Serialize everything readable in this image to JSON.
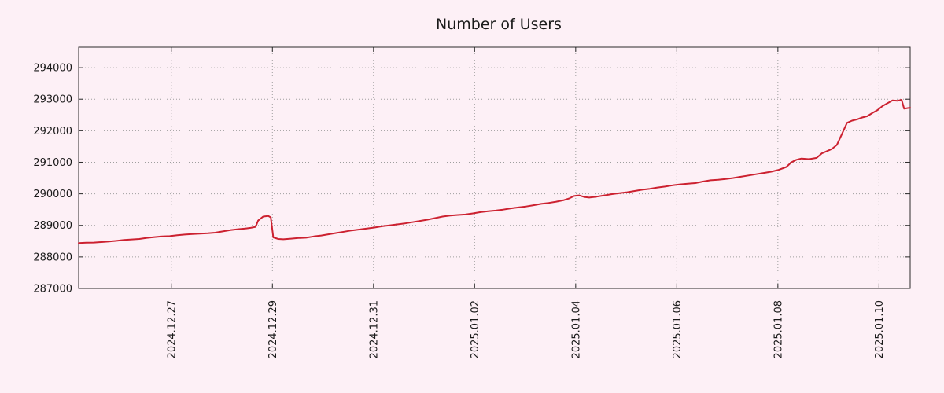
{
  "title": "Number of Users",
  "chart_data": {
    "type": "line",
    "title": "Number of Users",
    "xlabel": "",
    "ylabel": "",
    "legend": "none",
    "grid": "dotted",
    "colors": {
      "background": "#fdf0f6",
      "line": "#cc2130",
      "grid": "#9e9e9e",
      "frame": "#2a2a2a",
      "text": "#1a1a1a"
    },
    "x_axis": {
      "unit": "days-from-left-edge",
      "range_days": [
        0,
        16.45
      ],
      "ticks": [
        {
          "t": 1.833,
          "label": "2024.12.27"
        },
        {
          "t": 3.833,
          "label": "2024.12.29"
        },
        {
          "t": 5.833,
          "label": "2024.12.31"
        },
        {
          "t": 7.833,
          "label": "2025.01.02"
        },
        {
          "t": 9.833,
          "label": "2025.01.04"
        },
        {
          "t": 11.833,
          "label": "2025.01.06"
        },
        {
          "t": 13.833,
          "label": "2025.01.08"
        },
        {
          "t": 15.833,
          "label": "2025.01.10"
        }
      ]
    },
    "y_axis": {
      "range": [
        287000,
        294650
      ],
      "ticks": [
        287000,
        288000,
        289000,
        290000,
        291000,
        292000,
        293000,
        294000
      ]
    },
    "series": [
      {
        "name": "Number of Users",
        "color": "#cc2130",
        "points": [
          [
            0,
            288440
          ],
          [
            0.15,
            288450
          ],
          [
            0.3,
            288455
          ],
          [
            0.45,
            288470
          ],
          [
            0.6,
            288490
          ],
          [
            0.75,
            288510
          ],
          [
            0.9,
            288540
          ],
          [
            1.05,
            288555
          ],
          [
            1.2,
            288570
          ],
          [
            1.35,
            288605
          ],
          [
            1.5,
            288630
          ],
          [
            1.65,
            288650
          ],
          [
            1.8,
            288660
          ],
          [
            1.95,
            288690
          ],
          [
            2.1,
            288710
          ],
          [
            2.25,
            288725
          ],
          [
            2.4,
            288740
          ],
          [
            2.55,
            288750
          ],
          [
            2.7,
            288770
          ],
          [
            2.85,
            288810
          ],
          [
            3,
            288850
          ],
          [
            3.15,
            288880
          ],
          [
            3.3,
            288900
          ],
          [
            3.4,
            288920
          ],
          [
            3.5,
            288950
          ],
          [
            3.55,
            289150
          ],
          [
            3.65,
            289280
          ],
          [
            3.75,
            289300
          ],
          [
            3.8,
            289255
          ],
          [
            3.85,
            288620
          ],
          [
            3.95,
            288570
          ],
          [
            4.05,
            288560
          ],
          [
            4.2,
            288580
          ],
          [
            4.35,
            288600
          ],
          [
            4.5,
            288610
          ],
          [
            4.65,
            288650
          ],
          [
            4.8,
            288680
          ],
          [
            4.95,
            288720
          ],
          [
            5.1,
            288760
          ],
          [
            5.25,
            288800
          ],
          [
            5.4,
            288840
          ],
          [
            5.55,
            288870
          ],
          [
            5.7,
            288900
          ],
          [
            5.85,
            288930
          ],
          [
            6,
            288970
          ],
          [
            6.15,
            289000
          ],
          [
            6.3,
            289030
          ],
          [
            6.45,
            289060
          ],
          [
            6.6,
            289100
          ],
          [
            6.75,
            289140
          ],
          [
            6.9,
            289180
          ],
          [
            7.05,
            289230
          ],
          [
            7.2,
            289280
          ],
          [
            7.35,
            289310
          ],
          [
            7.5,
            289330
          ],
          [
            7.65,
            289345
          ],
          [
            7.8,
            289380
          ],
          [
            7.95,
            289420
          ],
          [
            8.1,
            289450
          ],
          [
            8.25,
            289470
          ],
          [
            8.4,
            289500
          ],
          [
            8.55,
            289540
          ],
          [
            8.7,
            289570
          ],
          [
            8.85,
            289600
          ],
          [
            9,
            289640
          ],
          [
            9.15,
            289680
          ],
          [
            9.3,
            289710
          ],
          [
            9.45,
            289750
          ],
          [
            9.6,
            289800
          ],
          [
            9.7,
            289850
          ],
          [
            9.8,
            289930
          ],
          [
            9.9,
            289950
          ],
          [
            10,
            289900
          ],
          [
            10.1,
            289880
          ],
          [
            10.25,
            289910
          ],
          [
            10.4,
            289950
          ],
          [
            10.55,
            289990
          ],
          [
            10.7,
            290020
          ],
          [
            10.85,
            290050
          ],
          [
            11,
            290090
          ],
          [
            11.15,
            290130
          ],
          [
            11.3,
            290160
          ],
          [
            11.45,
            290200
          ],
          [
            11.6,
            290230
          ],
          [
            11.75,
            290270
          ],
          [
            11.9,
            290300
          ],
          [
            12.05,
            290320
          ],
          [
            12.2,
            290340
          ],
          [
            12.35,
            290390
          ],
          [
            12.5,
            290430
          ],
          [
            12.65,
            290445
          ],
          [
            12.8,
            290470
          ],
          [
            12.95,
            290500
          ],
          [
            13.1,
            290540
          ],
          [
            13.25,
            290580
          ],
          [
            13.4,
            290620
          ],
          [
            13.55,
            290660
          ],
          [
            13.7,
            290700
          ],
          [
            13.85,
            290760
          ],
          [
            14,
            290850
          ],
          [
            14.1,
            291000
          ],
          [
            14.2,
            291080
          ],
          [
            14.3,
            291120
          ],
          [
            14.45,
            291100
          ],
          [
            14.6,
            291140
          ],
          [
            14.7,
            291280
          ],
          [
            14.8,
            291350
          ],
          [
            14.9,
            291420
          ],
          [
            15,
            291550
          ],
          [
            15.1,
            291900
          ],
          [
            15.2,
            292250
          ],
          [
            15.3,
            292320
          ],
          [
            15.4,
            292360
          ],
          [
            15.5,
            292420
          ],
          [
            15.6,
            292460
          ],
          [
            15.7,
            292560
          ],
          [
            15.8,
            292650
          ],
          [
            15.9,
            292780
          ],
          [
            16,
            292870
          ],
          [
            16.1,
            292960
          ],
          [
            16.2,
            292950
          ],
          [
            16.28,
            292980
          ],
          [
            16.33,
            292700
          ],
          [
            16.4,
            292720
          ],
          [
            16.45,
            292730
          ]
        ]
      }
    ]
  }
}
